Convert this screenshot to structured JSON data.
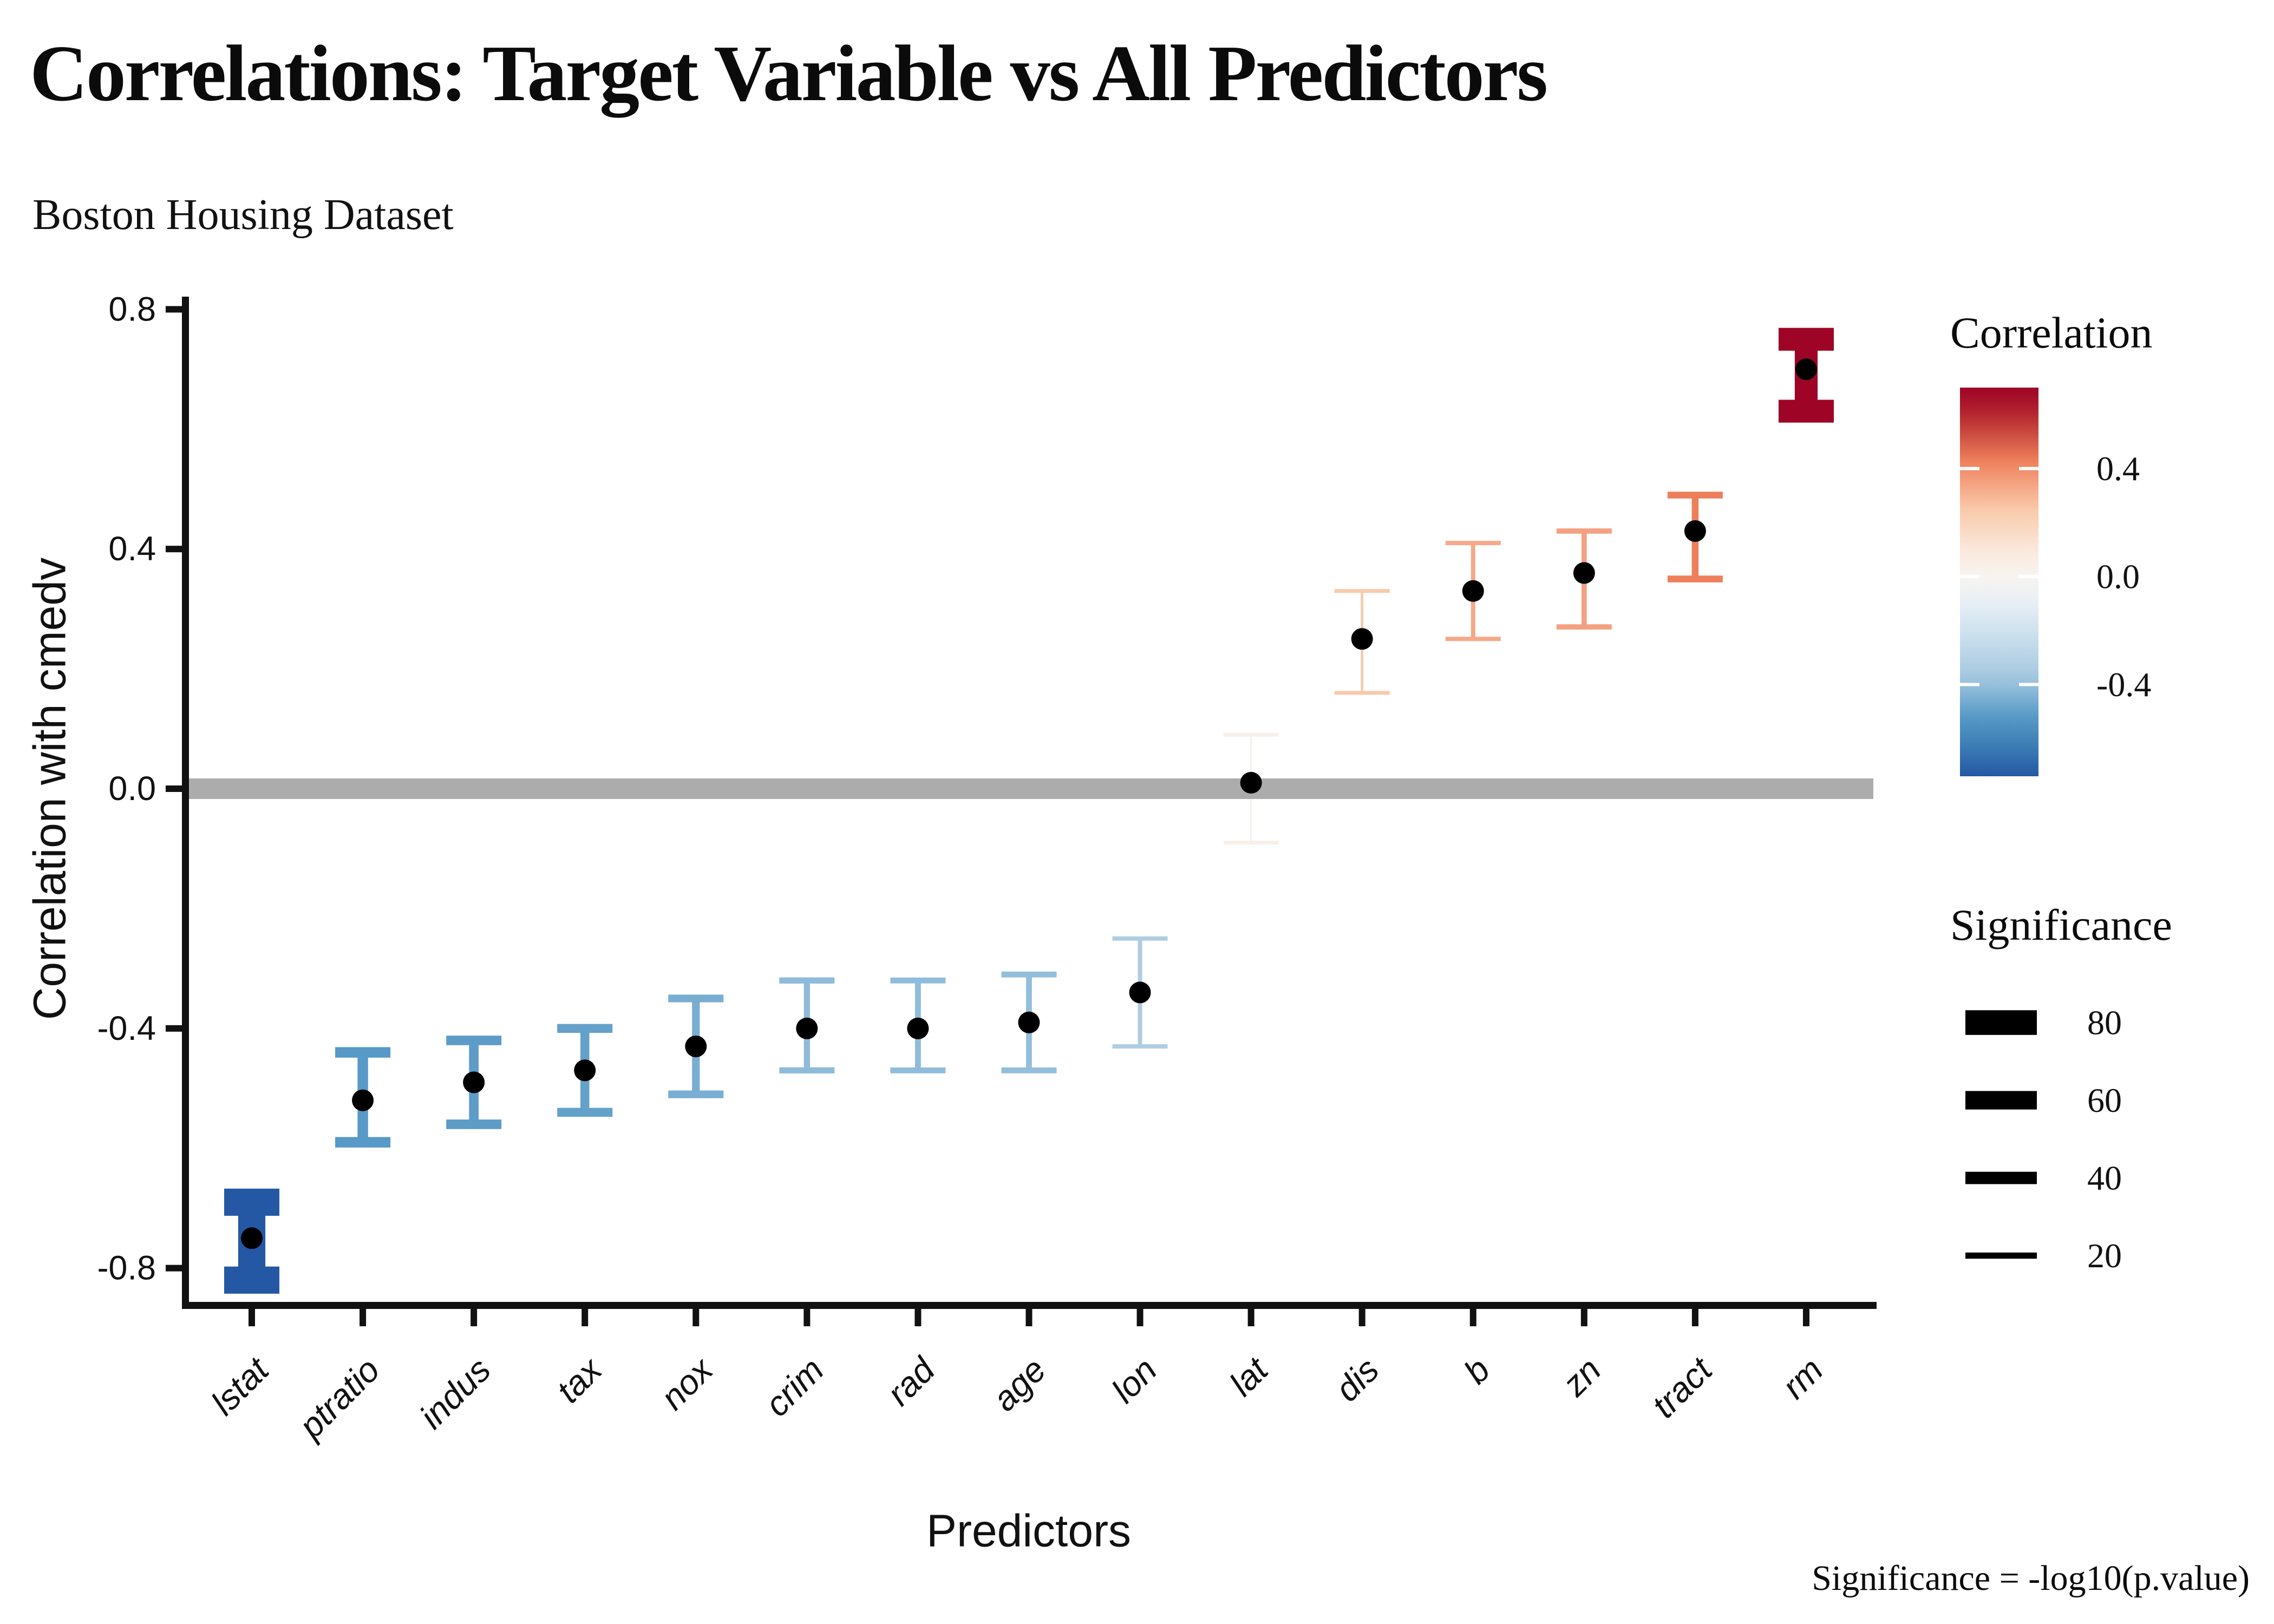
{
  "chart_data": {
    "type": "errorbar",
    "title": "Correlations: Target Variable vs All Predictors",
    "subtitle": "Boston Housing Dataset",
    "caption": "Significance = -log10(p.value)",
    "xlabel": "Predictors",
    "ylabel": "Correlation with cmedv",
    "ylim": [
      -0.8,
      0.8
    ],
    "grid": false,
    "background": "#FFFFFF",
    "point_color": "#000000",
    "axis_color": "#111111",
    "zero_line": {
      "value": 0.0,
      "color": "#ACACAC"
    },
    "y_ticks": {
      "values": [
        0.8,
        0.4,
        0.0,
        -0.4,
        -0.8
      ],
      "labels": [
        "0.8",
        "0.4",
        "0.0",
        "-0.4",
        "-0.8"
      ]
    },
    "categories": [
      "lstat",
      "ptratio",
      "indus",
      "tax",
      "nox",
      "crim",
      "rad",
      "age",
      "lon",
      "lat",
      "dis",
      "b",
      "zn",
      "tract",
      "rm"
    ],
    "points": [
      {
        "label": "lstat",
        "value": -0.75,
        "ci_low": -0.82,
        "ci_high": -0.69,
        "significance": 88,
        "color": "#2458A4"
      },
      {
        "label": "ptratio",
        "value": -0.52,
        "ci_low": -0.59,
        "ci_high": -0.44,
        "significance": 34,
        "color": "#5799C7"
      },
      {
        "label": "indus",
        "value": -0.49,
        "ci_low": -0.56,
        "ci_high": -0.42,
        "significance": 31,
        "color": "#5E9CC8"
      },
      {
        "label": "tax",
        "value": -0.47,
        "ci_low": -0.54,
        "ci_high": -0.4,
        "significance": 29,
        "color": "#64A1CA"
      },
      {
        "label": "nox",
        "value": -0.43,
        "ci_low": -0.51,
        "ci_high": -0.35,
        "significance": 25,
        "color": "#79AED2"
      },
      {
        "label": "crim",
        "value": -0.4,
        "ci_low": -0.47,
        "ci_high": -0.32,
        "significance": 20,
        "color": "#8FBBDA"
      },
      {
        "label": "rad",
        "value": -0.4,
        "ci_low": -0.47,
        "ci_high": -0.32,
        "significance": 19,
        "color": "#90BCDB"
      },
      {
        "label": "age",
        "value": -0.39,
        "ci_low": -0.47,
        "ci_high": -0.31,
        "significance": 19,
        "color": "#93BEDC"
      },
      {
        "label": "lon",
        "value": -0.34,
        "ci_low": -0.43,
        "ci_high": -0.25,
        "significance": 14,
        "color": "#AECDE3"
      },
      {
        "label": "lat",
        "value": 0.01,
        "ci_low": -0.09,
        "ci_high": 0.09,
        "significance": 0.1,
        "color": "#F7F0E9"
      },
      {
        "label": "dis",
        "value": 0.25,
        "ci_low": 0.16,
        "ci_high": 0.33,
        "significance": 8,
        "color": "#F9C9AA"
      },
      {
        "label": "b",
        "value": 0.33,
        "ci_low": 0.25,
        "ci_high": 0.41,
        "significance": 14,
        "color": "#F5A988"
      },
      {
        "label": "zn",
        "value": 0.36,
        "ci_low": 0.27,
        "ci_high": 0.43,
        "significance": 17,
        "color": "#F4A181"
      },
      {
        "label": "tract",
        "value": 0.43,
        "ci_low": 0.35,
        "ci_high": 0.49,
        "significance": 22,
        "color": "#EE7F5B"
      },
      {
        "label": "rm",
        "value": 0.7,
        "ci_low": 0.63,
        "ci_high": 0.75,
        "significance": 74,
        "color": "#9E0426"
      }
    ],
    "legend_correlation": {
      "title": "Correlation",
      "domain_top": 0.7,
      "domain_bottom": -0.74,
      "tick_values": [
        0.4,
        0.0,
        -0.4
      ],
      "tick_labels": [
        "0.4",
        "0.0",
        "-0.4"
      ],
      "gradient": [
        {
          "at": 0.0,
          "color": "#9E0426"
        },
        {
          "at": 0.056,
          "color": "#B01F2E"
        },
        {
          "at": 0.104,
          "color": "#C4413A"
        },
        {
          "at": 0.188,
          "color": "#EE7F5B"
        },
        {
          "at": 0.257,
          "color": "#F5A988"
        },
        {
          "at": 0.313,
          "color": "#F9C9AA"
        },
        {
          "at": 0.42,
          "color": "#FAE9DD"
        },
        {
          "at": 0.486,
          "color": "#F8F4F0"
        },
        {
          "at": 0.556,
          "color": "#E7EFF5"
        },
        {
          "at": 0.66,
          "color": "#C3DBEA"
        },
        {
          "at": 0.722,
          "color": "#AECDE3"
        },
        {
          "at": 0.764,
          "color": "#97C0DC"
        },
        {
          "at": 0.847,
          "color": "#5799C7"
        },
        {
          "at": 0.917,
          "color": "#3E7FB5"
        },
        {
          "at": 1.0,
          "color": "#2458A4"
        }
      ]
    },
    "legend_significance": {
      "title": "Significance",
      "values": [
        80,
        60,
        40,
        20
      ],
      "labels": [
        "80",
        "60",
        "40",
        "20"
      ]
    }
  }
}
